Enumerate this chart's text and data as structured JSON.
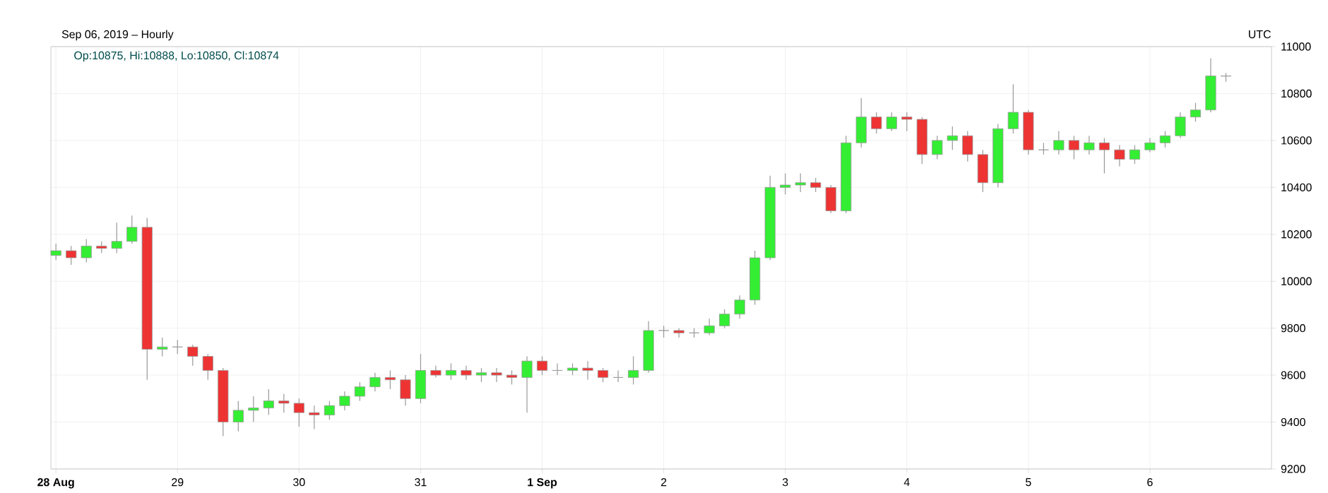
{
  "chart_data": {
    "type": "candlestick",
    "subtitle": "Sep 06, 2019 – Hourly",
    "annotations": [
      "Op:10875, Hi:10888, Lo:10850, Cl:10874",
      "UTC"
    ],
    "x": [
      "2019-08-28T00:00",
      "2019-08-28T03:00",
      "2019-08-28T06:00",
      "2019-08-28T09:00",
      "2019-08-28T12:00",
      "2019-08-28T15:00",
      "2019-08-28T18:00",
      "2019-08-28T21:00",
      "2019-08-29T00:00",
      "2019-08-29T03:00",
      "2019-08-29T06:00",
      "2019-08-29T09:00",
      "2019-08-29T12:00",
      "2019-08-29T15:00",
      "2019-08-29T18:00",
      "2019-08-29T21:00",
      "2019-08-30T00:00",
      "2019-08-30T03:00",
      "2019-08-30T06:00",
      "2019-08-30T09:00",
      "2019-08-30T12:00",
      "2019-08-30T15:00",
      "2019-08-30T18:00",
      "2019-08-30T21:00",
      "2019-08-31T00:00",
      "2019-08-31T03:00",
      "2019-08-31T06:00",
      "2019-08-31T09:00",
      "2019-08-31T12:00",
      "2019-08-31T15:00",
      "2019-08-31T18:00",
      "2019-08-31T21:00",
      "2019-09-01T00:00",
      "2019-09-01T03:00",
      "2019-09-01T06:00",
      "2019-09-01T09:00",
      "2019-09-01T12:00",
      "2019-09-01T15:00",
      "2019-09-01T18:00",
      "2019-09-01T21:00",
      "2019-09-02T00:00",
      "2019-09-02T03:00",
      "2019-09-02T06:00",
      "2019-09-02T09:00",
      "2019-09-02T12:00",
      "2019-09-02T15:00",
      "2019-09-02T18:00",
      "2019-09-02T21:00",
      "2019-09-03T00:00",
      "2019-09-03T03:00",
      "2019-09-03T06:00",
      "2019-09-03T09:00",
      "2019-09-03T12:00",
      "2019-09-03T15:00",
      "2019-09-03T18:00",
      "2019-09-03T21:00",
      "2019-09-04T00:00",
      "2019-09-04T03:00",
      "2019-09-04T06:00",
      "2019-09-04T09:00",
      "2019-09-04T12:00",
      "2019-09-04T15:00",
      "2019-09-04T18:00",
      "2019-09-04T21:00",
      "2019-09-05T00:00",
      "2019-09-05T03:00",
      "2019-09-05T06:00",
      "2019-09-05T09:00",
      "2019-09-05T12:00",
      "2019-09-05T15:00",
      "2019-09-05T18:00",
      "2019-09-05T21:00",
      "2019-09-06T00:00",
      "2019-09-06T03:00",
      "2019-09-06T06:00",
      "2019-09-06T09:00",
      "2019-09-06T12:00",
      "2019-09-06T15:00"
    ],
    "ohlc": [
      [
        10110,
        10160,
        10090,
        10130
      ],
      [
        10130,
        10150,
        10070,
        10100
      ],
      [
        10100,
        10180,
        10080,
        10150
      ],
      [
        10150,
        10170,
        10120,
        10140
      ],
      [
        10140,
        10250,
        10120,
        10170
      ],
      [
        10170,
        10280,
        10160,
        10230
      ],
      [
        10230,
        10270,
        9580,
        9710
      ],
      [
        9710,
        9760,
        9680,
        9720
      ],
      [
        9720,
        9750,
        9690,
        9720
      ],
      [
        9720,
        9730,
        9640,
        9680
      ],
      [
        9680,
        9690,
        9580,
        9620
      ],
      [
        9620,
        9630,
        9340,
        9400
      ],
      [
        9400,
        9490,
        9360,
        9450
      ],
      [
        9450,
        9510,
        9400,
        9460
      ],
      [
        9460,
        9540,
        9430,
        9490
      ],
      [
        9490,
        9520,
        9440,
        9480
      ],
      [
        9480,
        9500,
        9380,
        9440
      ],
      [
        9440,
        9470,
        9370,
        9430
      ],
      [
        9430,
        9490,
        9410,
        9470
      ],
      [
        9470,
        9530,
        9450,
        9510
      ],
      [
        9510,
        9570,
        9490,
        9550
      ],
      [
        9550,
        9610,
        9530,
        9590
      ],
      [
        9590,
        9620,
        9540,
        9580
      ],
      [
        9580,
        9600,
        9470,
        9500
      ],
      [
        9500,
        9690,
        9480,
        9620
      ],
      [
        9620,
        9640,
        9590,
        9600
      ],
      [
        9600,
        9650,
        9580,
        9620
      ],
      [
        9620,
        9640,
        9580,
        9600
      ],
      [
        9600,
        9630,
        9570,
        9610
      ],
      [
        9610,
        9630,
        9570,
        9600
      ],
      [
        9600,
        9620,
        9560,
        9590
      ],
      [
        9590,
        9680,
        9440,
        9660
      ],
      [
        9660,
        9680,
        9600,
        9620
      ],
      [
        9620,
        9650,
        9600,
        9620
      ],
      [
        9620,
        9650,
        9600,
        9630
      ],
      [
        9630,
        9660,
        9580,
        9620
      ],
      [
        9620,
        9630,
        9570,
        9590
      ],
      [
        9590,
        9620,
        9570,
        9590
      ],
      [
        9590,
        9680,
        9560,
        9620
      ],
      [
        9620,
        9830,
        9610,
        9790
      ],
      [
        9790,
        9810,
        9760,
        9790
      ],
      [
        9790,
        9800,
        9760,
        9780
      ],
      [
        9780,
        9800,
        9760,
        9780
      ],
      [
        9780,
        9840,
        9770,
        9810
      ],
      [
        9810,
        9880,
        9800,
        9860
      ],
      [
        9860,
        9940,
        9840,
        9920
      ],
      [
        9920,
        10130,
        9900,
        10100
      ],
      [
        10100,
        10450,
        10090,
        10400
      ],
      [
        10400,
        10460,
        10370,
        10410
      ],
      [
        10410,
        10460,
        10380,
        10420
      ],
      [
        10420,
        10440,
        10380,
        10400
      ],
      [
        10400,
        10410,
        10290,
        10300
      ],
      [
        10300,
        10620,
        10290,
        10590
      ],
      [
        10590,
        10780,
        10570,
        10700
      ],
      [
        10700,
        10720,
        10630,
        10650
      ],
      [
        10650,
        10720,
        10640,
        10700
      ],
      [
        10700,
        10720,
        10640,
        10690
      ],
      [
        10690,
        10700,
        10500,
        10540
      ],
      [
        10540,
        10620,
        10520,
        10600
      ],
      [
        10600,
        10660,
        10560,
        10620
      ],
      [
        10620,
        10640,
        10510,
        10540
      ],
      [
        10540,
        10560,
        10380,
        10420
      ],
      [
        10420,
        10670,
        10400,
        10650
      ],
      [
        10650,
        10840,
        10630,
        10720
      ],
      [
        10720,
        10730,
        10540,
        10560
      ],
      [
        10560,
        10590,
        10540,
        10560
      ],
      [
        10560,
        10640,
        10540,
        10600
      ],
      [
        10600,
        10620,
        10520,
        10560
      ],
      [
        10560,
        10620,
        10540,
        10590
      ],
      [
        10590,
        10610,
        10460,
        10560
      ],
      [
        10560,
        10580,
        10490,
        10520
      ],
      [
        10520,
        10580,
        10500,
        10560
      ],
      [
        10560,
        10610,
        10550,
        10590
      ],
      [
        10590,
        10640,
        10570,
        10620
      ],
      [
        10620,
        10720,
        10610,
        10700
      ],
      [
        10700,
        10760,
        10680,
        10730
      ],
      [
        10730,
        10950,
        10720,
        10875
      ],
      [
        10875,
        10888,
        10850,
        10874
      ]
    ],
    "xlim": [
      "2019-08-27T23:00",
      "2019-09-07T00:00"
    ],
    "xticks": [
      {
        "value": "2019-08-28",
        "label": "28 Aug"
      },
      {
        "value": "2019-08-29",
        "label": "29"
      },
      {
        "value": "2019-08-30",
        "label": "30"
      },
      {
        "value": "2019-08-31",
        "label": "31"
      },
      {
        "value": "2019-09-01",
        "label": "1 Sep"
      },
      {
        "value": "2019-09-02",
        "label": "2"
      },
      {
        "value": "2019-09-03",
        "label": "3"
      },
      {
        "value": "2019-09-04",
        "label": "4"
      },
      {
        "value": "2019-09-05",
        "label": "5"
      },
      {
        "value": "2019-09-06",
        "label": "6"
      }
    ],
    "ylim": [
      9200,
      11000
    ],
    "yticks": [
      9200,
      9400,
      9600,
      9800,
      10000,
      10200,
      10400,
      10600,
      10800,
      11000
    ],
    "grid": true
  }
}
